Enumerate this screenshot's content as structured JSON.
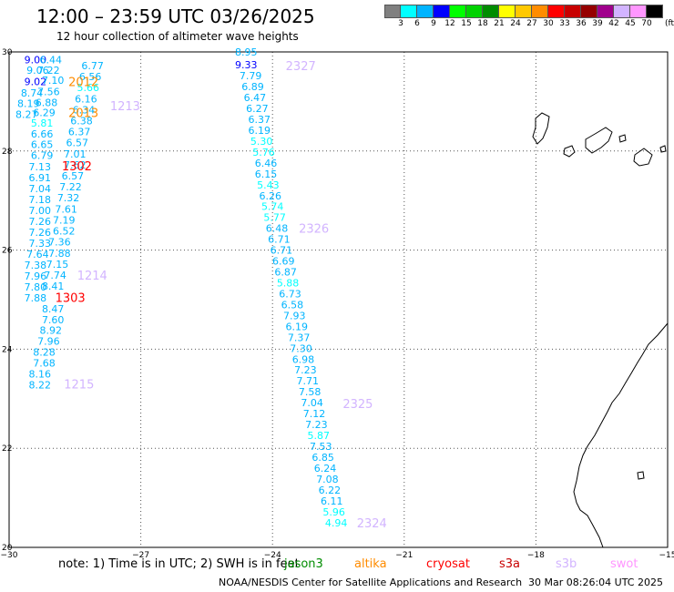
{
  "header": {
    "title": "12:00 – 23:59 UTC 03/26/2025",
    "subtitle": "12 hour collection of altimeter wave heights"
  },
  "legend": {
    "unit_label": "(ft)",
    "colors": [
      "#808080",
      "#00ffff",
      "#00b4ff",
      "#0000ff",
      "#00ff00",
      "#00d200",
      "#008c00",
      "#ffff00",
      "#ffc800",
      "#ff8c00",
      "#ff0000",
      "#c80000",
      "#960000",
      "#a0008c",
      "#d2b4ff",
      "#ff96ff",
      "#000000"
    ],
    "labels": [
      "3",
      "6",
      "9",
      "12",
      "15",
      "18",
      "21",
      "24",
      "27",
      "30",
      "33",
      "36",
      "39",
      "42",
      "45",
      "70"
    ]
  },
  "map": {
    "lon_min": -30,
    "lon_max": -15,
    "lat_min": 20,
    "lat_max": 30,
    "x_tick_labels": [
      "−30",
      "−27",
      "−24",
      "−21",
      "−18",
      "−15"
    ],
    "y_tick_labels": [
      "30",
      "28",
      "26",
      "24",
      "22",
      "20"
    ],
    "x_ticks": [
      -30,
      -27,
      -24,
      -21,
      -18,
      -15
    ],
    "y_ticks": [
      30,
      28,
      26,
      24,
      22,
      20
    ]
  },
  "tracks": {
    "track_a": [
      {
        "lon": -29.4,
        "lat": 29.84,
        "v": "9.00",
        "c": "#0000ff"
      },
      {
        "lon": -29.05,
        "lat": 29.84,
        "v": "6.44",
        "c": "#00b4ff"
      },
      {
        "lon": -29.35,
        "lat": 29.63,
        "v": "9.06",
        "c": "#00b4ff"
      },
      {
        "lon": -29.1,
        "lat": 29.63,
        "v": "7.22",
        "c": "#00b4ff"
      },
      {
        "lon": -29.4,
        "lat": 29.4,
        "v": "9.02",
        "c": "#0000ff"
      },
      {
        "lon": -29.0,
        "lat": 29.43,
        "v": "7.10",
        "c": "#00b4ff"
      },
      {
        "lon": -29.48,
        "lat": 29.17,
        "v": "8.74",
        "c": "#00b4ff"
      },
      {
        "lon": -29.1,
        "lat": 29.2,
        "v": "7.56",
        "c": "#00b4ff"
      },
      {
        "lon": -29.56,
        "lat": 28.96,
        "v": "8.19",
        "c": "#00b4ff"
      },
      {
        "lon": -29.15,
        "lat": 28.98,
        "v": "6.88",
        "c": "#00b4ff"
      },
      {
        "lon": -29.6,
        "lat": 28.74,
        "v": "8.27",
        "c": "#00b4ff"
      },
      {
        "lon": -29.2,
        "lat": 28.78,
        "v": "6.29",
        "c": "#00b4ff"
      },
      {
        "lon": -29.25,
        "lat": 28.57,
        "v": "5.81",
        "c": "#00ffff"
      },
      {
        "lon": -29.25,
        "lat": 28.35,
        "v": "6.66",
        "c": "#00b4ff"
      },
      {
        "lon": -29.25,
        "lat": 28.13,
        "v": "6.65",
        "c": "#00b4ff"
      },
      {
        "lon": -29.25,
        "lat": 27.91,
        "v": "6.79",
        "c": "#00b4ff"
      },
      {
        "lon": -29.3,
        "lat": 27.68,
        "v": "7.13",
        "c": "#00b4ff"
      },
      {
        "lon": -29.3,
        "lat": 27.46,
        "v": "6.91",
        "c": "#00b4ff"
      },
      {
        "lon": -29.3,
        "lat": 27.24,
        "v": "7.04",
        "c": "#00b4ff"
      },
      {
        "lon": -29.3,
        "lat": 27.02,
        "v": "7.18",
        "c": "#00b4ff"
      },
      {
        "lon": -29.3,
        "lat": 26.8,
        "v": "7.00",
        "c": "#00b4ff"
      },
      {
        "lon": -29.3,
        "lat": 26.58,
        "v": "7.26",
        "c": "#00b4ff"
      },
      {
        "lon": -29.3,
        "lat": 26.36,
        "v": "7.26",
        "c": "#00b4ff"
      },
      {
        "lon": -29.3,
        "lat": 26.14,
        "v": "7.33",
        "c": "#00b4ff"
      },
      {
        "lon": -29.35,
        "lat": 25.92,
        "v": "7.64",
        "c": "#00b4ff"
      },
      {
        "lon": -29.4,
        "lat": 25.7,
        "v": "7.38",
        "c": "#00b4ff"
      },
      {
        "lon": -29.4,
        "lat": 25.48,
        "v": "7.96",
        "c": "#00b4ff"
      },
      {
        "lon": -29.4,
        "lat": 25.26,
        "v": "7.80",
        "c": "#00b4ff"
      },
      {
        "lon": -29.4,
        "lat": 25.04,
        "v": "7.88",
        "c": "#00b4ff"
      },
      {
        "lon": -29.0,
        "lat": 24.82,
        "v": "8.47",
        "c": "#00b4ff"
      },
      {
        "lon": -29.0,
        "lat": 24.6,
        "v": "7.60",
        "c": "#00b4ff"
      },
      {
        "lon": -29.05,
        "lat": 24.38,
        "v": "8.92",
        "c": "#00b4ff"
      },
      {
        "lon": -29.1,
        "lat": 24.16,
        "v": "7.96",
        "c": "#00b4ff"
      },
      {
        "lon": -29.2,
        "lat": 23.94,
        "v": "8.28",
        "c": "#00b4ff"
      },
      {
        "lon": -29.2,
        "lat": 23.72,
        "v": "7.68",
        "c": "#00b4ff"
      },
      {
        "lon": -29.3,
        "lat": 23.5,
        "v": "8.16",
        "c": "#00b4ff"
      },
      {
        "lon": -29.3,
        "lat": 23.28,
        "v": "8.22",
        "c": "#00b4ff"
      }
    ],
    "track_b": [
      {
        "lon": -28.1,
        "lat": 29.72,
        "v": "6.77",
        "c": "#00b4ff"
      },
      {
        "lon": -28.15,
        "lat": 29.5,
        "v": "6.56",
        "c": "#00b4ff"
      },
      {
        "lon": -28.2,
        "lat": 29.28,
        "v": "5.66",
        "c": "#00ffff"
      },
      {
        "lon": -28.25,
        "lat": 29.05,
        "v": "6.16",
        "c": "#00b4ff"
      },
      {
        "lon": -28.3,
        "lat": 28.83,
        "v": "6.34",
        "c": "#00b4ff"
      },
      {
        "lon": -28.35,
        "lat": 28.61,
        "v": "6.38",
        "c": "#00b4ff"
      },
      {
        "lon": -28.4,
        "lat": 28.39,
        "v": "6.37",
        "c": "#00b4ff"
      },
      {
        "lon": -28.45,
        "lat": 28.17,
        "v": "6.57",
        "c": "#00b4ff"
      },
      {
        "lon": -28.5,
        "lat": 27.94,
        "v": "7.01",
        "c": "#00b4ff"
      },
      {
        "lon": -28.5,
        "lat": 27.72,
        "v": "7.62",
        "c": "#00b4ff"
      },
      {
        "lon": -28.55,
        "lat": 27.5,
        "v": "6.57",
        "c": "#00b4ff"
      },
      {
        "lon": -28.6,
        "lat": 27.28,
        "v": "7.22",
        "c": "#00b4ff"
      },
      {
        "lon": -28.65,
        "lat": 27.06,
        "v": "7.32",
        "c": "#00b4ff"
      },
      {
        "lon": -28.7,
        "lat": 26.83,
        "v": "7.61",
        "c": "#00b4ff"
      },
      {
        "lon": -28.75,
        "lat": 26.61,
        "v": "7.19",
        "c": "#00b4ff"
      },
      {
        "lon": -28.75,
        "lat": 26.39,
        "v": "6.52",
        "c": "#00b4ff"
      },
      {
        "lon": -28.85,
        "lat": 26.17,
        "v": "7.36",
        "c": "#00b4ff"
      },
      {
        "lon": -28.85,
        "lat": 25.94,
        "v": "7.88",
        "c": "#00b4ff"
      },
      {
        "lon": -28.9,
        "lat": 25.72,
        "v": "7.15",
        "c": "#00b4ff"
      },
      {
        "lon": -28.95,
        "lat": 25.5,
        "v": "7.74",
        "c": "#00b4ff"
      },
      {
        "lon": -29.0,
        "lat": 25.28,
        "v": "8.41",
        "c": "#00b4ff"
      }
    ],
    "track_c": [
      {
        "lon": -24.6,
        "lat": 30.0,
        "v": "8.95",
        "c": "#00b4ff"
      },
      {
        "lon": -24.6,
        "lat": 29.74,
        "v": "9.33",
        "c": "#0000ff"
      },
      {
        "lon": -24.5,
        "lat": 29.52,
        "v": "7.79",
        "c": "#00b4ff"
      },
      {
        "lon": -24.45,
        "lat": 29.3,
        "v": "6.89",
        "c": "#00b4ff"
      },
      {
        "lon": -24.4,
        "lat": 29.08,
        "v": "6.47",
        "c": "#00b4ff"
      },
      {
        "lon": -24.35,
        "lat": 28.86,
        "v": "6.27",
        "c": "#00b4ff"
      },
      {
        "lon": -24.3,
        "lat": 28.64,
        "v": "6.37",
        "c": "#00b4ff"
      },
      {
        "lon": -24.3,
        "lat": 28.42,
        "v": "6.19",
        "c": "#00b4ff"
      },
      {
        "lon": -24.25,
        "lat": 28.2,
        "v": "5.30",
        "c": "#00ffff"
      },
      {
        "lon": -24.2,
        "lat": 27.98,
        "v": "5.76",
        "c": "#00ffff"
      },
      {
        "lon": -24.15,
        "lat": 27.76,
        "v": "6.46",
        "c": "#00b4ff"
      },
      {
        "lon": -24.15,
        "lat": 27.54,
        "v": "6.15",
        "c": "#00b4ff"
      },
      {
        "lon": -24.1,
        "lat": 27.32,
        "v": "5.43",
        "c": "#00ffff"
      },
      {
        "lon": -24.05,
        "lat": 27.1,
        "v": "6.26",
        "c": "#00b4ff"
      },
      {
        "lon": -24.0,
        "lat": 26.88,
        "v": "5.74",
        "c": "#00ffff"
      },
      {
        "lon": -23.95,
        "lat": 26.66,
        "v": "5.77",
        "c": "#00ffff"
      },
      {
        "lon": -23.9,
        "lat": 26.44,
        "v": "6.48",
        "c": "#00b4ff"
      },
      {
        "lon": -23.85,
        "lat": 26.22,
        "v": "6.71",
        "c": "#00b4ff"
      },
      {
        "lon": -23.8,
        "lat": 26.0,
        "v": "6.71",
        "c": "#00b4ff"
      },
      {
        "lon": -23.75,
        "lat": 25.78,
        "v": "6.69",
        "c": "#00b4ff"
      },
      {
        "lon": -23.7,
        "lat": 25.56,
        "v": "6.87",
        "c": "#00b4ff"
      },
      {
        "lon": -23.65,
        "lat": 25.34,
        "v": "5.88",
        "c": "#00ffff"
      },
      {
        "lon": -23.6,
        "lat": 25.12,
        "v": "6.73",
        "c": "#00b4ff"
      },
      {
        "lon": -23.55,
        "lat": 24.9,
        "v": "6.58",
        "c": "#00b4ff"
      },
      {
        "lon": -23.5,
        "lat": 24.68,
        "v": "7.93",
        "c": "#00b4ff"
      },
      {
        "lon": -23.45,
        "lat": 24.46,
        "v": "6.19",
        "c": "#00b4ff"
      },
      {
        "lon": -23.4,
        "lat": 24.24,
        "v": "7.37",
        "c": "#00b4ff"
      },
      {
        "lon": -23.35,
        "lat": 24.02,
        "v": "7.30",
        "c": "#00b4ff"
      },
      {
        "lon": -23.3,
        "lat": 23.8,
        "v": "6.98",
        "c": "#00b4ff"
      },
      {
        "lon": -23.25,
        "lat": 23.58,
        "v": "7.23",
        "c": "#00b4ff"
      },
      {
        "lon": -23.2,
        "lat": 23.36,
        "v": "7.71",
        "c": "#00b4ff"
      },
      {
        "lon": -23.15,
        "lat": 23.14,
        "v": "7.58",
        "c": "#00b4ff"
      },
      {
        "lon": -23.1,
        "lat": 22.92,
        "v": "7.04",
        "c": "#00b4ff"
      },
      {
        "lon": -23.05,
        "lat": 22.7,
        "v": "7.12",
        "c": "#00b4ff"
      },
      {
        "lon": -23.0,
        "lat": 22.48,
        "v": "7.23",
        "c": "#00b4ff"
      },
      {
        "lon": -22.95,
        "lat": 22.26,
        "v": "5.87",
        "c": "#00ffff"
      },
      {
        "lon": -22.9,
        "lat": 22.04,
        "v": "7.53",
        "c": "#00b4ff"
      },
      {
        "lon": -22.85,
        "lat": 21.82,
        "v": "6.85",
        "c": "#00b4ff"
      },
      {
        "lon": -22.8,
        "lat": 21.6,
        "v": "6.24",
        "c": "#00b4ff"
      },
      {
        "lon": -22.75,
        "lat": 21.38,
        "v": "7.08",
        "c": "#00b4ff"
      },
      {
        "lon": -22.7,
        "lat": 21.16,
        "v": "6.22",
        "c": "#00b4ff"
      },
      {
        "lon": -22.65,
        "lat": 20.94,
        "v": "6.11",
        "c": "#00b4ff"
      },
      {
        "lon": -22.6,
        "lat": 20.72,
        "v": "5.96",
        "c": "#00ffff"
      },
      {
        "lon": -22.55,
        "lat": 20.5,
        "v": "4.94",
        "c": "#00ffff"
      }
    ]
  },
  "pass_labels": [
    {
      "text": "2012",
      "lon": -28.65,
      "lat": 29.4,
      "c": "#ff8c00"
    },
    {
      "text": "2013",
      "lon": -28.65,
      "lat": 28.78,
      "c": "#ff8c00"
    },
    {
      "text": "1213",
      "lon": -27.7,
      "lat": 28.92,
      "c": "#d2b4ff"
    },
    {
      "text": "1302",
      "lon": -28.8,
      "lat": 27.7,
      "c": "#ff0000"
    },
    {
      "text": "2327",
      "lon": -23.7,
      "lat": 29.72,
      "c": "#d2b4ff"
    },
    {
      "text": "2326",
      "lon": -23.4,
      "lat": 26.44,
      "c": "#d2b4ff"
    },
    {
      "text": "1214",
      "lon": -28.45,
      "lat": 25.5,
      "c": "#d2b4ff"
    },
    {
      "text": "1303",
      "lon": -28.95,
      "lat": 25.05,
      "c": "#ff0000"
    },
    {
      "text": "1215",
      "lon": -28.75,
      "lat": 23.3,
      "c": "#d2b4ff"
    },
    {
      "text": "2325",
      "lon": -22.4,
      "lat": 22.9,
      "c": "#d2b4ff"
    },
    {
      "text": "2324",
      "lon": -22.08,
      "lat": 20.5,
      "c": "#d2b4ff"
    }
  ],
  "footer": {
    "note": "note:  1) Time is in UTC; 2) SWH is in feet",
    "satellites": [
      {
        "name": "jason3",
        "c": "#008c00",
        "x": 312
      },
      {
        "name": "altika",
        "c": "#ff8c00",
        "x": 389
      },
      {
        "name": "cryosat",
        "c": "#ff0000",
        "x": 468
      },
      {
        "name": "s3a",
        "c": "#c80000",
        "x": 548
      },
      {
        "name": "s3b",
        "c": "#d2b4ff",
        "x": 610
      },
      {
        "name": "swot",
        "c": "#ff96ff",
        "x": 670
      }
    ],
    "credit": "NOAA/NESDIS Center for Satellite Applications and Research",
    "timestamp": "30 Mar 08:26:04 UTC 2025"
  }
}
